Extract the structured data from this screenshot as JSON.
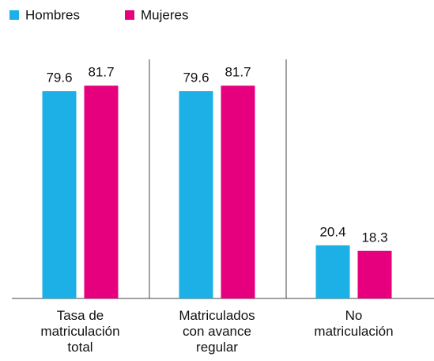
{
  "chart_data": {
    "type": "bar",
    "categories": [
      "Tasa de\nmatriculación\ntotal",
      "Matriculados\ncon avance\nregular",
      "No\nmatriculación"
    ],
    "series": [
      {
        "name": "Hombres",
        "color": "#1cb0e6",
        "values": [
          79.6,
          79.6,
          20.4
        ]
      },
      {
        "name": "Mujeres",
        "color": "#e6007e",
        "values": [
          81.7,
          81.7,
          18.3
        ]
      }
    ],
    "ylim": [
      0,
      100
    ],
    "legend": "top-left"
  }
}
